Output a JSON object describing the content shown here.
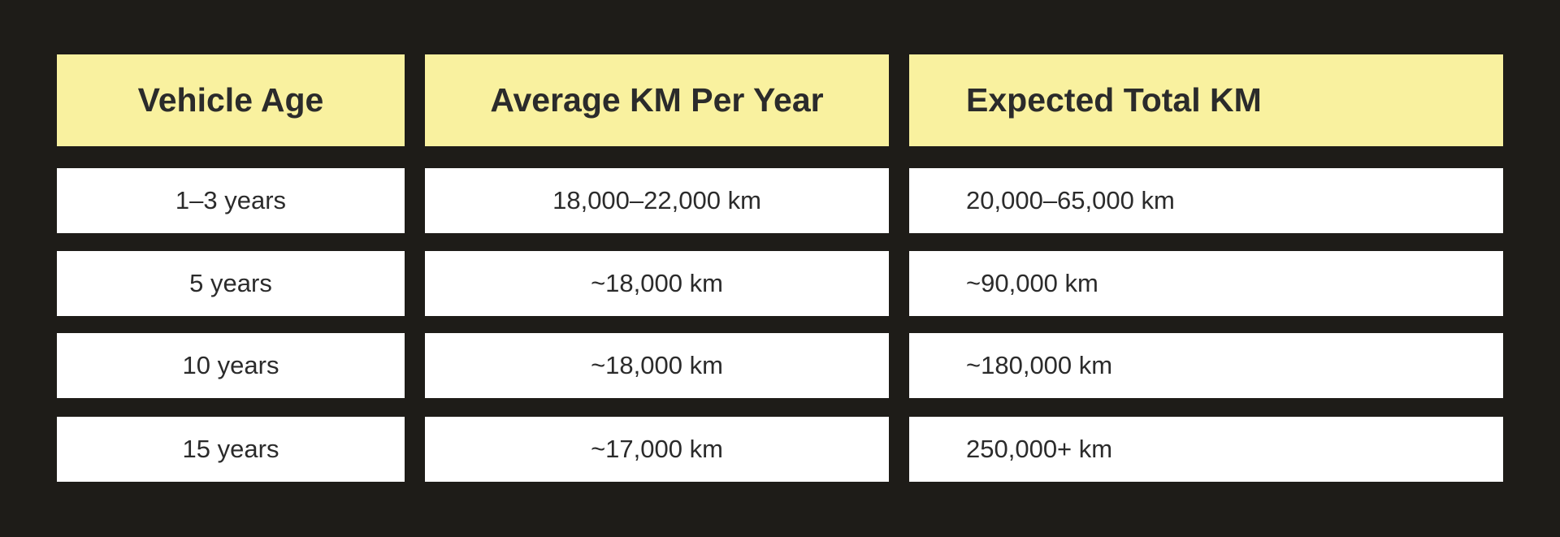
{
  "table": {
    "headers": [
      "Vehicle Age",
      "Average KM Per Year",
      "Expected Total KM"
    ],
    "rows": [
      [
        "1–3 years",
        "18,000–22,000 km",
        "20,000–65,000 km"
      ],
      [
        "5 years",
        "~18,000 km",
        "~90,000 km"
      ],
      [
        "10 years",
        "~18,000 km",
        "~180,000 km"
      ],
      [
        "15 years",
        "~17,000 km",
        "250,000+ km"
      ]
    ]
  },
  "colors": {
    "background": "#1e1c18",
    "header": "#f9f19f",
    "cell": "#ffffff",
    "text": "#2b2b2b"
  }
}
